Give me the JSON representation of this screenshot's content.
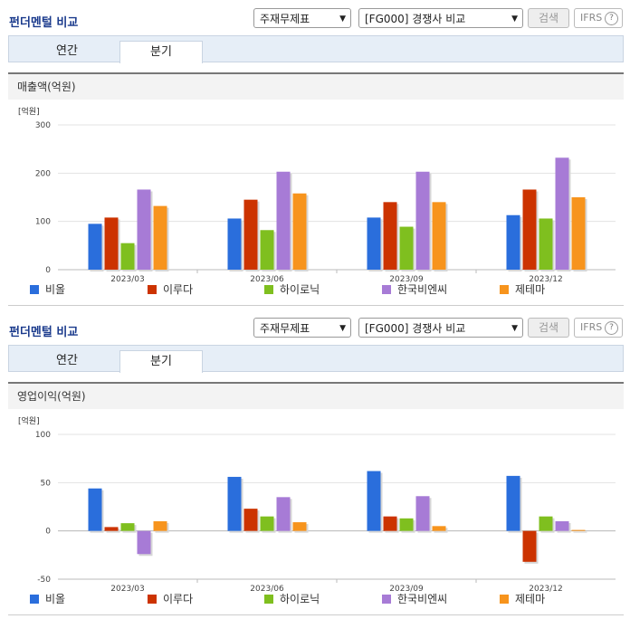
{
  "panels": [
    {
      "title": "펀더멘털 비교",
      "select_statement": "주재무제표",
      "select_group": "[FG000] 경쟁사 비교",
      "search_label": "검색",
      "ifrs_label": "IFRS",
      "help_label": "?",
      "tabs": [
        {
          "label": "연간"
        },
        {
          "label": "분기"
        }
      ],
      "active_tab": 1,
      "section_title": "매출액(억원)"
    },
    {
      "title": "펀더멘털 비교",
      "select_statement": "주재무제표",
      "select_group": "[FG000] 경쟁사 비교",
      "search_label": "검색",
      "ifrs_label": "IFRS",
      "help_label": "?",
      "tabs": [
        {
          "label": "연간"
        },
        {
          "label": "분기"
        }
      ],
      "active_tab": 1,
      "section_title": "영업이익(억원)"
    }
  ],
  "chart_data": [
    {
      "type": "bar",
      "unit": "[억원]",
      "categories": [
        "2023/03",
        "2023/06",
        "2023/09",
        "2023/12"
      ],
      "ylim": [
        0,
        300
      ],
      "yticks": [
        0,
        100,
        200,
        300
      ],
      "grid": true,
      "legend_position": "bottom",
      "series": [
        {
          "name": "비올",
          "color": "#2a6edc",
          "values": [
            95,
            106,
            108,
            113
          ]
        },
        {
          "name": "이루다",
          "color": "#cc3300",
          "values": [
            108,
            145,
            140,
            166
          ]
        },
        {
          "name": "하이로닉",
          "color": "#7fbf1f",
          "values": [
            55,
            82,
            89,
            106
          ]
        },
        {
          "name": "한국비엔씨",
          "color": "#a77bd6",
          "values": [
            166,
            203,
            203,
            232
          ]
        },
        {
          "name": "제테마",
          "color": "#f7941d",
          "values": [
            132,
            158,
            140,
            150
          ]
        }
      ]
    },
    {
      "type": "bar",
      "unit": "[억원]",
      "categories": [
        "2023/03",
        "2023/06",
        "2023/09",
        "2023/12"
      ],
      "ylim": [
        -50,
        100
      ],
      "yticks": [
        -50,
        0,
        50,
        100
      ],
      "grid": true,
      "legend_position": "bottom",
      "series": [
        {
          "name": "비올",
          "color": "#2a6edc",
          "values": [
            44,
            56,
            62,
            57
          ]
        },
        {
          "name": "이루다",
          "color": "#cc3300",
          "values": [
            4,
            23,
            15,
            -32
          ]
        },
        {
          "name": "하이로닉",
          "color": "#7fbf1f",
          "values": [
            8,
            15,
            13,
            15
          ]
        },
        {
          "name": "한국비엔씨",
          "color": "#a77bd6",
          "values": [
            -24,
            35,
            36,
            10
          ]
        },
        {
          "name": "제테마",
          "color": "#f7941d",
          "values": [
            10,
            9,
            5,
            1
          ]
        }
      ]
    }
  ]
}
